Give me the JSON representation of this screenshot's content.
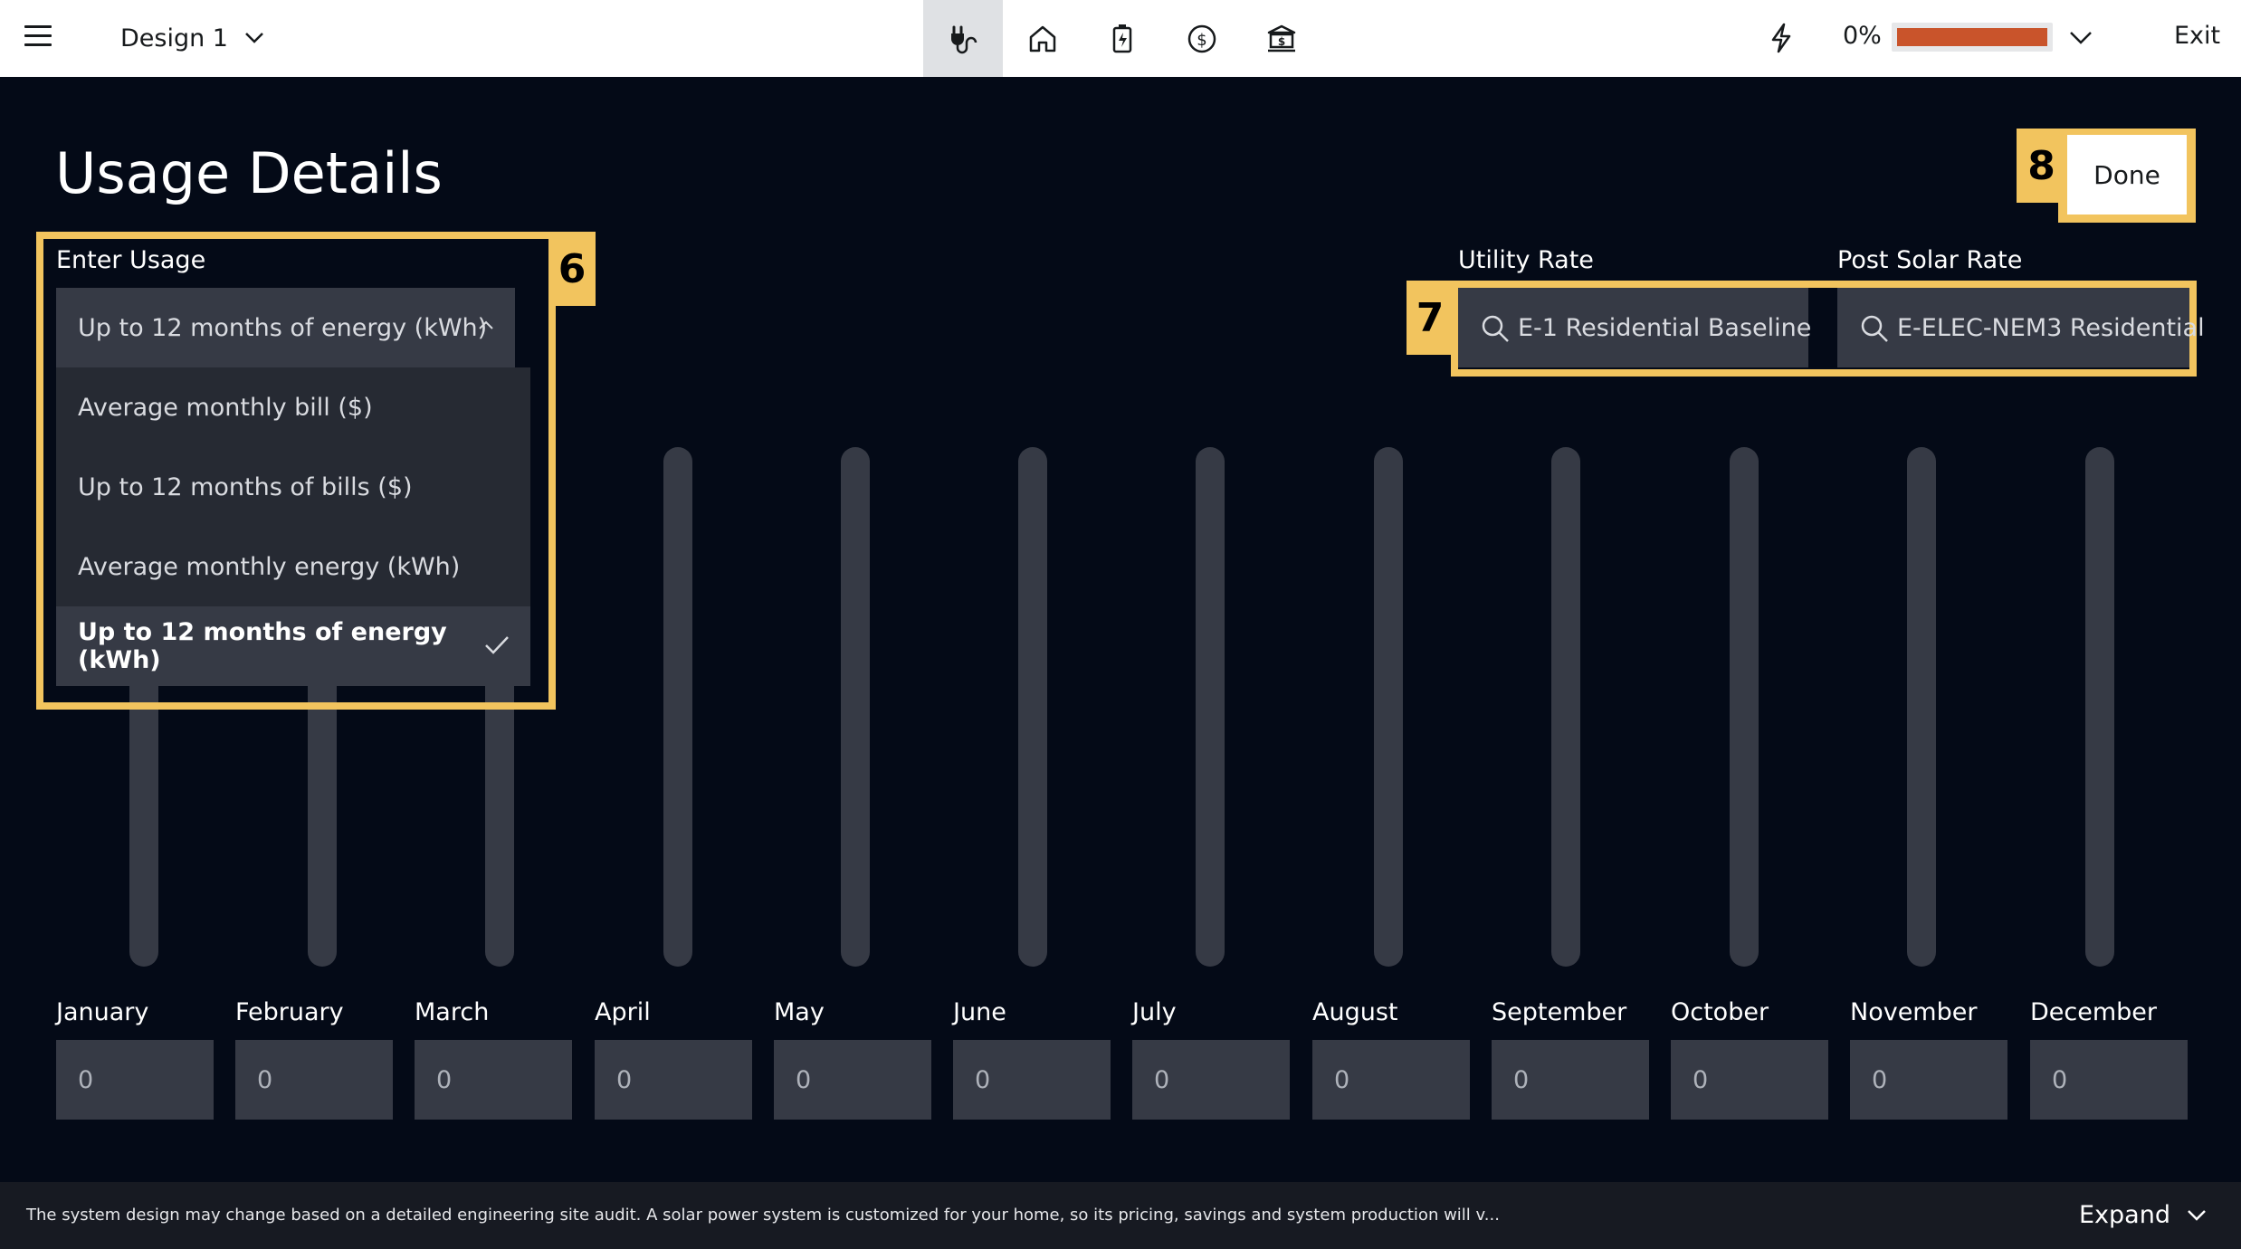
{
  "header": {
    "design_name": "Design 1",
    "nav_icons": [
      "plug-icon",
      "home-icon",
      "battery-icon",
      "dollar-icon",
      "finance-icon"
    ],
    "progress_pct": "0%",
    "progress_value": 0,
    "exit_label": "Exit"
  },
  "page": {
    "title": "Usage Details",
    "done_label": "Done",
    "done_marker": "8"
  },
  "usage": {
    "label": "Enter Usage",
    "marker": "6",
    "selected": "Up to 12 months of energy (kWh)",
    "options": [
      "Average monthly bill ($)",
      "Up to 12 months of bills ($)",
      "Average monthly energy (kWh)",
      "Up to 12 months of energy (kWh)"
    ]
  },
  "rates": {
    "marker": "7",
    "utility_label": "Utility Rate",
    "utility_value": "E-1 Residential Baseline",
    "post_solar_label": "Post Solar Rate",
    "post_solar_value": "E-ELEC-NEM3 Residential"
  },
  "months": [
    {
      "name": "January",
      "value": "0"
    },
    {
      "name": "February",
      "value": "0"
    },
    {
      "name": "March",
      "value": "0"
    },
    {
      "name": "April",
      "value": "0"
    },
    {
      "name": "May",
      "value": "0"
    },
    {
      "name": "June",
      "value": "0"
    },
    {
      "name": "July",
      "value": "0"
    },
    {
      "name": "August",
      "value": "0"
    },
    {
      "name": "September",
      "value": "0"
    },
    {
      "name": "October",
      "value": "0"
    },
    {
      "name": "November",
      "value": "0"
    },
    {
      "name": "December",
      "value": "0"
    }
  ],
  "footer": {
    "disclaimer": "The system design may change based on a detailed engineering site audit. A solar power system is customized for your home, so its pricing, savings and system production will v...",
    "expand_label": "Expand"
  },
  "colors": {
    "background": "#040a17",
    "accent_highlight": "#f2c45e",
    "progress_fill": "#c9542b",
    "field_bg": "#363a45"
  }
}
